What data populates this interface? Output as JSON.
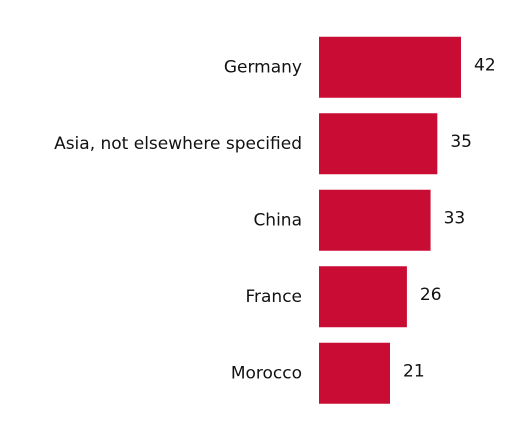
{
  "chart_data": {
    "type": "bar",
    "orientation": "horizontal",
    "categories": [
      "Germany",
      "Asia, not elsewhere specified",
      "China",
      "France",
      "Morocco"
    ],
    "values": [
      42,
      35,
      33,
      26,
      21
    ],
    "color": "#c90c34"
  }
}
